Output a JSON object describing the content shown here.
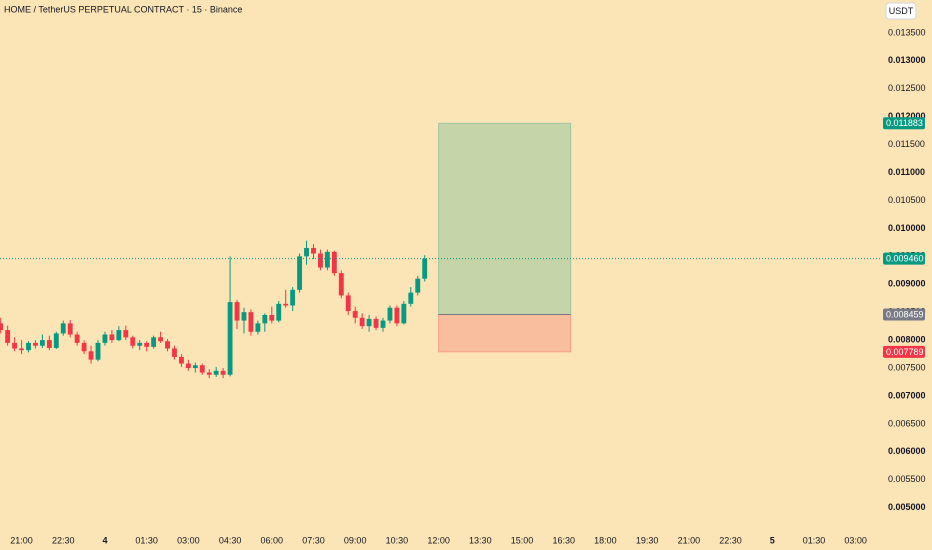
{
  "chart_data": {
    "type": "candlestick",
    "title": "HOME / TetherUS PERPETUAL CONTRACT · 15 · Binance",
    "currency": "USDT",
    "up_color": "#089981",
    "down_color": "#f23645",
    "x": [
      -3,
      -2,
      -1,
      0,
      1,
      2,
      3,
      4,
      5,
      6,
      7,
      8,
      9,
      10,
      11,
      12,
      13,
      14,
      15,
      16,
      17,
      18,
      19,
      20,
      21,
      22,
      23,
      24,
      25,
      26,
      27,
      28,
      29,
      30,
      31,
      32,
      33,
      34,
      35,
      36,
      37,
      38,
      39,
      40,
      41,
      42,
      43,
      44,
      45,
      46,
      47,
      48,
      49,
      50,
      51,
      52,
      53,
      54,
      55,
      56,
      57,
      58
    ],
    "open": [
      0.0083,
      0.00818,
      0.00795,
      0.00785,
      0.00782,
      0.00795,
      0.0079,
      0.008,
      0.00786,
      0.00812,
      0.0083,
      0.0081,
      0.00795,
      0.0078,
      0.00765,
      0.00795,
      0.0081,
      0.008,
      0.00818,
      0.00805,
      0.0079,
      0.00795,
      0.00788,
      0.00805,
      0.00798,
      0.00785,
      0.0077,
      0.00758,
      0.0075,
      0.00755,
      0.00742,
      0.00738,
      0.00745,
      0.00738,
      0.00868,
      0.00835,
      0.0085,
      0.00815,
      0.0083,
      0.00845,
      0.00835,
      0.00865,
      0.00862,
      0.0089,
      0.0095,
      0.00965,
      0.00955,
      0.0093,
      0.00958,
      0.0092,
      0.0088,
      0.00852,
      0.0084,
      0.00825,
      0.00838,
      0.00822,
      0.00835,
      0.00858,
      0.0083,
      0.00865,
      0.00885,
      0.0091
    ],
    "high": [
      0.0084,
      0.00826,
      0.00805,
      0.008,
      0.00798,
      0.008,
      0.0081,
      0.00808,
      0.00815,
      0.00835,
      0.00836,
      0.00815,
      0.008,
      0.0079,
      0.008,
      0.00815,
      0.00818,
      0.00825,
      0.00826,
      0.00808,
      0.008,
      0.00798,
      0.00808,
      0.00815,
      0.00802,
      0.0079,
      0.00775,
      0.00765,
      0.0076,
      0.00758,
      0.00748,
      0.00752,
      0.0075,
      0.0095,
      0.00872,
      0.00858,
      0.00855,
      0.00835,
      0.00848,
      0.0086,
      0.0087,
      0.0089,
      0.00895,
      0.00955,
      0.00978,
      0.00972,
      0.00962,
      0.00962,
      0.0096,
      0.00925,
      0.00885,
      0.0086,
      0.00848,
      0.00845,
      0.00842,
      0.0084,
      0.00862,
      0.00862,
      0.0087,
      0.00895,
      0.00915,
      0.00952
    ],
    "low": [
      0.00812,
      0.0079,
      0.0078,
      0.00775,
      0.00778,
      0.00785,
      0.00786,
      0.00782,
      0.00784,
      0.00808,
      0.00805,
      0.0079,
      0.00775,
      0.00758,
      0.00762,
      0.0079,
      0.00795,
      0.00798,
      0.008,
      0.00785,
      0.00782,
      0.0078,
      0.00785,
      0.00795,
      0.0078,
      0.00765,
      0.00752,
      0.00745,
      0.00742,
      0.00738,
      0.00732,
      0.00734,
      0.00732,
      0.00735,
      0.0082,
      0.00812,
      0.00808,
      0.0081,
      0.00815,
      0.0083,
      0.00832,
      0.00858,
      0.00852,
      0.00885,
      0.00935,
      0.00945,
      0.00925,
      0.00925,
      0.00915,
      0.00875,
      0.00845,
      0.0083,
      0.0082,
      0.00815,
      0.00818,
      0.00815,
      0.0083,
      0.00825,
      0.00828,
      0.0086,
      0.0088,
      0.00905
    ],
    "close": [
      0.00818,
      0.00795,
      0.00785,
      0.00782,
      0.00795,
      0.0079,
      0.008,
      0.00786,
      0.00812,
      0.0083,
      0.0081,
      0.00795,
      0.0078,
      0.00765,
      0.00795,
      0.0081,
      0.008,
      0.00818,
      0.00805,
      0.0079,
      0.00795,
      0.00788,
      0.00805,
      0.00798,
      0.00785,
      0.0077,
      0.00758,
      0.0075,
      0.00755,
      0.00742,
      0.00738,
      0.00745,
      0.00738,
      0.00868,
      0.00835,
      0.0085,
      0.00815,
      0.0083,
      0.00845,
      0.00835,
      0.00865,
      0.00862,
      0.0089,
      0.0095,
      0.00965,
      0.00955,
      0.0093,
      0.00958,
      0.0092,
      0.0088,
      0.00852,
      0.0084,
      0.00825,
      0.00838,
      0.00822,
      0.00835,
      0.00858,
      0.0083,
      0.00865,
      0.00885,
      0.0091,
      0.00946
    ],
    "xlim": [
      -3.1,
      123.5
    ],
    "xticks": [
      {
        "value": 0,
        "label": "21:00"
      },
      {
        "value": 6,
        "label": "22:30"
      },
      {
        "value": 12,
        "label": "4"
      },
      {
        "value": 18,
        "label": "01:30"
      },
      {
        "value": 24,
        "label": "03:00"
      },
      {
        "value": 30,
        "label": "04:30"
      },
      {
        "value": 36,
        "label": "06:00"
      },
      {
        "value": 42,
        "label": "07:30"
      },
      {
        "value": 48,
        "label": "09:00"
      },
      {
        "value": 54,
        "label": "10:30"
      },
      {
        "value": 60,
        "label": "12:00"
      },
      {
        "value": 66,
        "label": "13:30"
      },
      {
        "value": 72,
        "label": "15:00"
      },
      {
        "value": 78,
        "label": "16:30"
      },
      {
        "value": 84,
        "label": "18:00"
      },
      {
        "value": 90,
        "label": "19:30"
      },
      {
        "value": 96,
        "label": "21:00"
      },
      {
        "value": 102,
        "label": "22:30"
      },
      {
        "value": 108,
        "label": "5"
      },
      {
        "value": 114,
        "label": "01:30"
      },
      {
        "value": 120,
        "label": "03:00"
      }
    ],
    "ylim": [
      0.0046,
      0.01409
    ],
    "yticks": [
      {
        "value": 0.0135,
        "label": "0.013500"
      },
      {
        "value": 0.013,
        "label": "0.013000"
      },
      {
        "value": 0.0125,
        "label": "0.012500"
      },
      {
        "value": 0.012,
        "label": "0.012000"
      },
      {
        "value": 0.0115,
        "label": "0.011500"
      },
      {
        "value": 0.011,
        "label": "0.011000"
      },
      {
        "value": 0.0105,
        "label": "0.010500"
      },
      {
        "value": 0.01,
        "label": "0.010000"
      },
      {
        "value": 0.0095,
        "label": "0.009500"
      },
      {
        "value": 0.009,
        "label": "0.009000"
      },
      {
        "value": 0.0085,
        "label": "0.008500"
      },
      {
        "value": 0.008,
        "label": "0.008000"
      },
      {
        "value": 0.0075,
        "label": "0.007500"
      },
      {
        "value": 0.007,
        "label": "0.007000"
      },
      {
        "value": 0.0065,
        "label": "0.006500"
      },
      {
        "value": 0.006,
        "label": "0.006000"
      },
      {
        "value": 0.0055,
        "label": "0.005500"
      },
      {
        "value": 0.005,
        "label": "0.005000"
      }
    ],
    "position": {
      "x_start": 60,
      "x_end": 79,
      "entry": 0.008459,
      "target": 0.011883,
      "stop": 0.007789
    },
    "price_labels": [
      {
        "value": 0.011883,
        "label": "0.011883",
        "color": "#089981"
      },
      {
        "value": 0.00946,
        "label": "0.009460",
        "color": "#089981"
      },
      {
        "value": 0.008459,
        "label": "0.008459",
        "color": "#787b86"
      },
      {
        "value": 0.007789,
        "label": "0.007789",
        "color": "#f23645"
      }
    ]
  }
}
